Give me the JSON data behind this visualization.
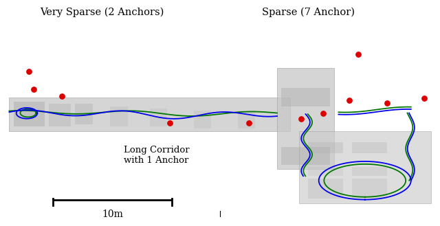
{
  "title_left": "Very Sparse (2 Anchors)",
  "title_right": "Sparse (7 Anchor)",
  "label_corridor": "Long Corridor\nwith 1 Anchor",
  "scale_label": "10m",
  "bg_color": "#ffffff",
  "trajectory_blue": "#0000ee",
  "trajectory_green": "#007700",
  "anchor_color": "#dd0000",
  "figsize": [
    6.4,
    3.29
  ],
  "dpi": 100
}
